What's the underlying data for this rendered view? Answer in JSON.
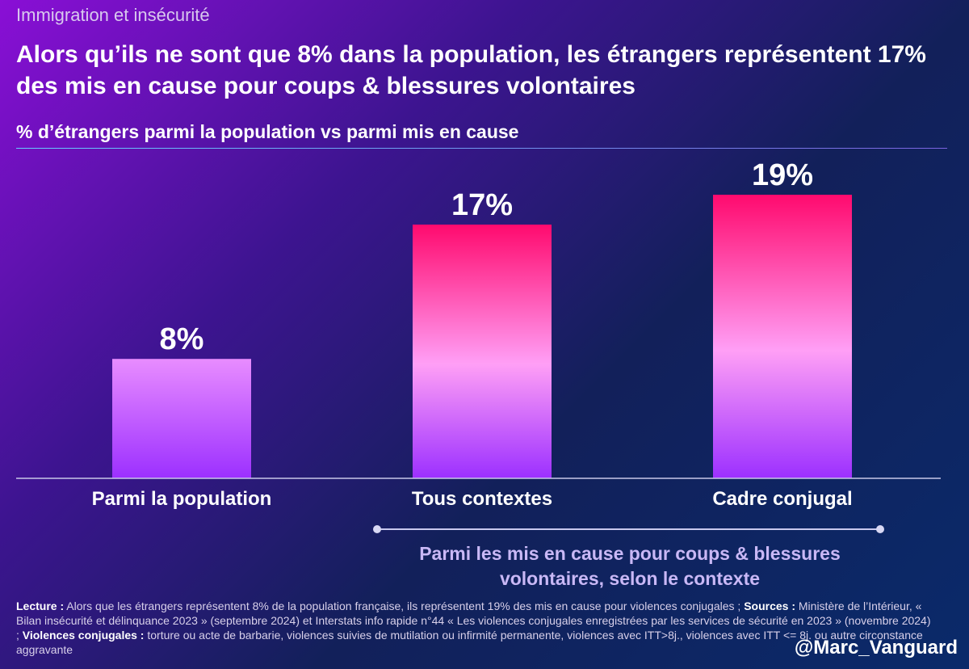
{
  "header": {
    "kicker": "Immigration et insécurité",
    "headline": "Alors qu’ils ne sont que 8% dans la population, les étrangers représentent 17% des mis en cause pour coups & blessures volontaires",
    "subtitle": "% d’étrangers parmi la population vs parmi mis en cause"
  },
  "chart_data": {
    "type": "bar",
    "title": "% d’étrangers parmi la population vs parmi mis en cause",
    "categories": [
      "Parmi la population",
      "Tous contextes",
      "Cadre conjugal"
    ],
    "values": [
      8,
      17,
      19
    ],
    "data_labels": [
      "8%",
      "17%",
      "19%"
    ],
    "unit": "%",
    "ylim": [
      0,
      19
    ],
    "grid": false,
    "group_annotation": {
      "spans": [
        "Tous contextes",
        "Cadre conjugal"
      ],
      "label": "Parmi les mis en cause pour coups & blessures volontaires, selon le contexte"
    }
  },
  "colors": {
    "bar_top": "#ff0a6e",
    "bar_mid": "#ff9ff6",
    "bar_bottom": "#9c30ff",
    "bar_low_top": "#e88cff",
    "axis": "#c7c7e8"
  },
  "footnote": {
    "lecture_label": "Lecture :",
    "lecture_text": " Alors que les étrangers représentent 8% de la population française, ils représentent 19% des mis en cause pour violences conjugales ; ",
    "sources_label": "Sources :",
    "sources_text": " Ministère de l’Intérieur, « Bilan insécurité et délinquance 2023 » (septembre 2024) et Interstats info rapide n°44 « Les violences conjugales enregistrées par les services de sécurité en 2023 » (novembre 2024) ; ",
    "violences_label": "Violences conjugales :",
    "violences_text": " torture ou acte de barbarie, violences suivies de mutilation ou infirmité permanente, violences avec ITT>8j., violences avec ITT <= 8j. ou autre circonstance aggravante"
  },
  "signature": "@Marc_Vanguard"
}
